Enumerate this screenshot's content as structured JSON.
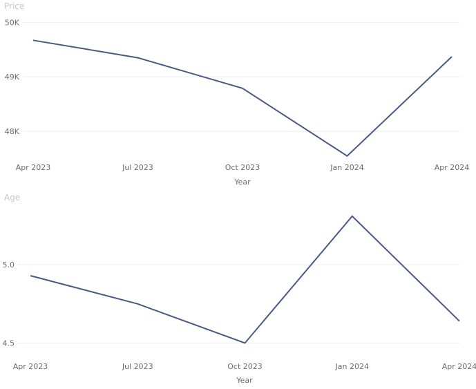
{
  "chart_data": [
    {
      "type": "line",
      "ylabel": "Price",
      "xlabel": "Year",
      "x": [
        "Apr 2023",
        "Jul 2023",
        "Oct 2023",
        "Jan 2024",
        "Apr 2024"
      ],
      "y_ticks": [
        "50K",
        "49K",
        "48K"
      ],
      "y_tick_values": [
        50000,
        49000,
        48000
      ],
      "ylim": [
        47400,
        50200
      ],
      "series": [
        {
          "values": [
            49670,
            49350,
            48790,
            47550,
            49370
          ]
        }
      ],
      "color": "#475985",
      "grid": true
    },
    {
      "type": "line",
      "ylabel": "Age",
      "xlabel": "Year",
      "x": [
        "Apr 2023",
        "Jul 2023",
        "Oct 2023",
        "Jan 2024",
        "Apr 2024"
      ],
      "y_ticks": [
        "5.0",
        "4.5"
      ],
      "y_tick_values": [
        5.0,
        4.5
      ],
      "ylim": [
        4.45,
        5.38
      ],
      "series": [
        {
          "values": [
            4.93,
            4.75,
            4.5,
            5.31,
            4.64
          ]
        }
      ],
      "color": "#475985",
      "grid": true
    }
  ]
}
